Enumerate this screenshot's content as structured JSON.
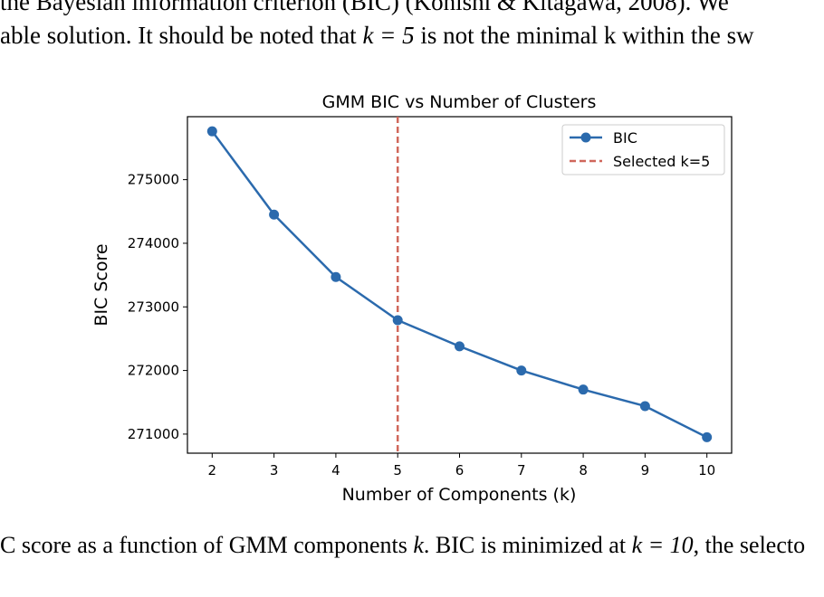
{
  "paper": {
    "line1_text": "the Bayesian information criterion (BIC) (Konishi & Kitagawa, 2008). We",
    "line2_a": "able solution. It should be noted that ",
    "line2_math": "k = 5",
    "line2_b": " is not the minimal k within the sw",
    "caption_a": "C score as a function of GMM components ",
    "caption_math1": "k",
    "caption_b": ". BIC is minimized at ",
    "caption_math2": "k = 10",
    "caption_c": ", the selecto"
  },
  "chart_data": {
    "type": "line",
    "title": "GMM BIC vs Number of Clusters",
    "xlabel": "Number of Components (k)",
    "ylabel": "BIC Score",
    "x": [
      2,
      3,
      4,
      5,
      6,
      7,
      8,
      9,
      10
    ],
    "series": [
      {
        "name": "BIC",
        "values": [
          275760,
          274450,
          273470,
          272790,
          272380,
          272000,
          271700,
          271440,
          270950
        ],
        "color": "#2b6aad",
        "marker": "circle"
      }
    ],
    "vline": {
      "x": 5,
      "name": "Selected k=5",
      "color": "#d0675b",
      "style": "dashed"
    },
    "xlim": [
      1.6,
      10.4
    ],
    "ylim": [
      270700,
      275990
    ],
    "xticks": [
      2,
      3,
      4,
      5,
      6,
      7,
      8,
      9,
      10
    ],
    "yticks": [
      271000,
      272000,
      273000,
      274000,
      275000
    ],
    "grid": false,
    "legend": "top-right"
  }
}
